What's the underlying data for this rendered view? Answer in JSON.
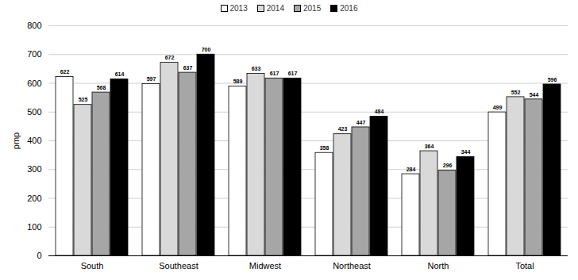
{
  "chart_data": {
    "type": "bar",
    "categories": [
      "South",
      "Southeast",
      "Midwest",
      "Northeast",
      "North",
      "Total"
    ],
    "series": [
      {
        "name": "2013",
        "color": "#ffffff",
        "values": [
          622,
          597,
          589,
          358,
          284,
          499
        ]
      },
      {
        "name": "2014",
        "color": "#d9d9d9",
        "values": [
          525,
          672,
          633,
          423,
          364,
          552
        ]
      },
      {
        "name": "2015",
        "color": "#a6a6a6",
        "values": [
          568,
          637,
          617,
          447,
          296,
          544
        ]
      },
      {
        "name": "2016",
        "color": "#000000",
        "values": [
          614,
          700,
          617,
          484,
          344,
          596
        ]
      }
    ],
    "ylabel": "pmp",
    "ylim": [
      0,
      800
    ],
    "yticks": [
      0,
      100,
      200,
      300,
      400,
      500,
      600,
      700,
      800
    ],
    "grid": true,
    "legend": "top",
    "data_labels": true
  }
}
